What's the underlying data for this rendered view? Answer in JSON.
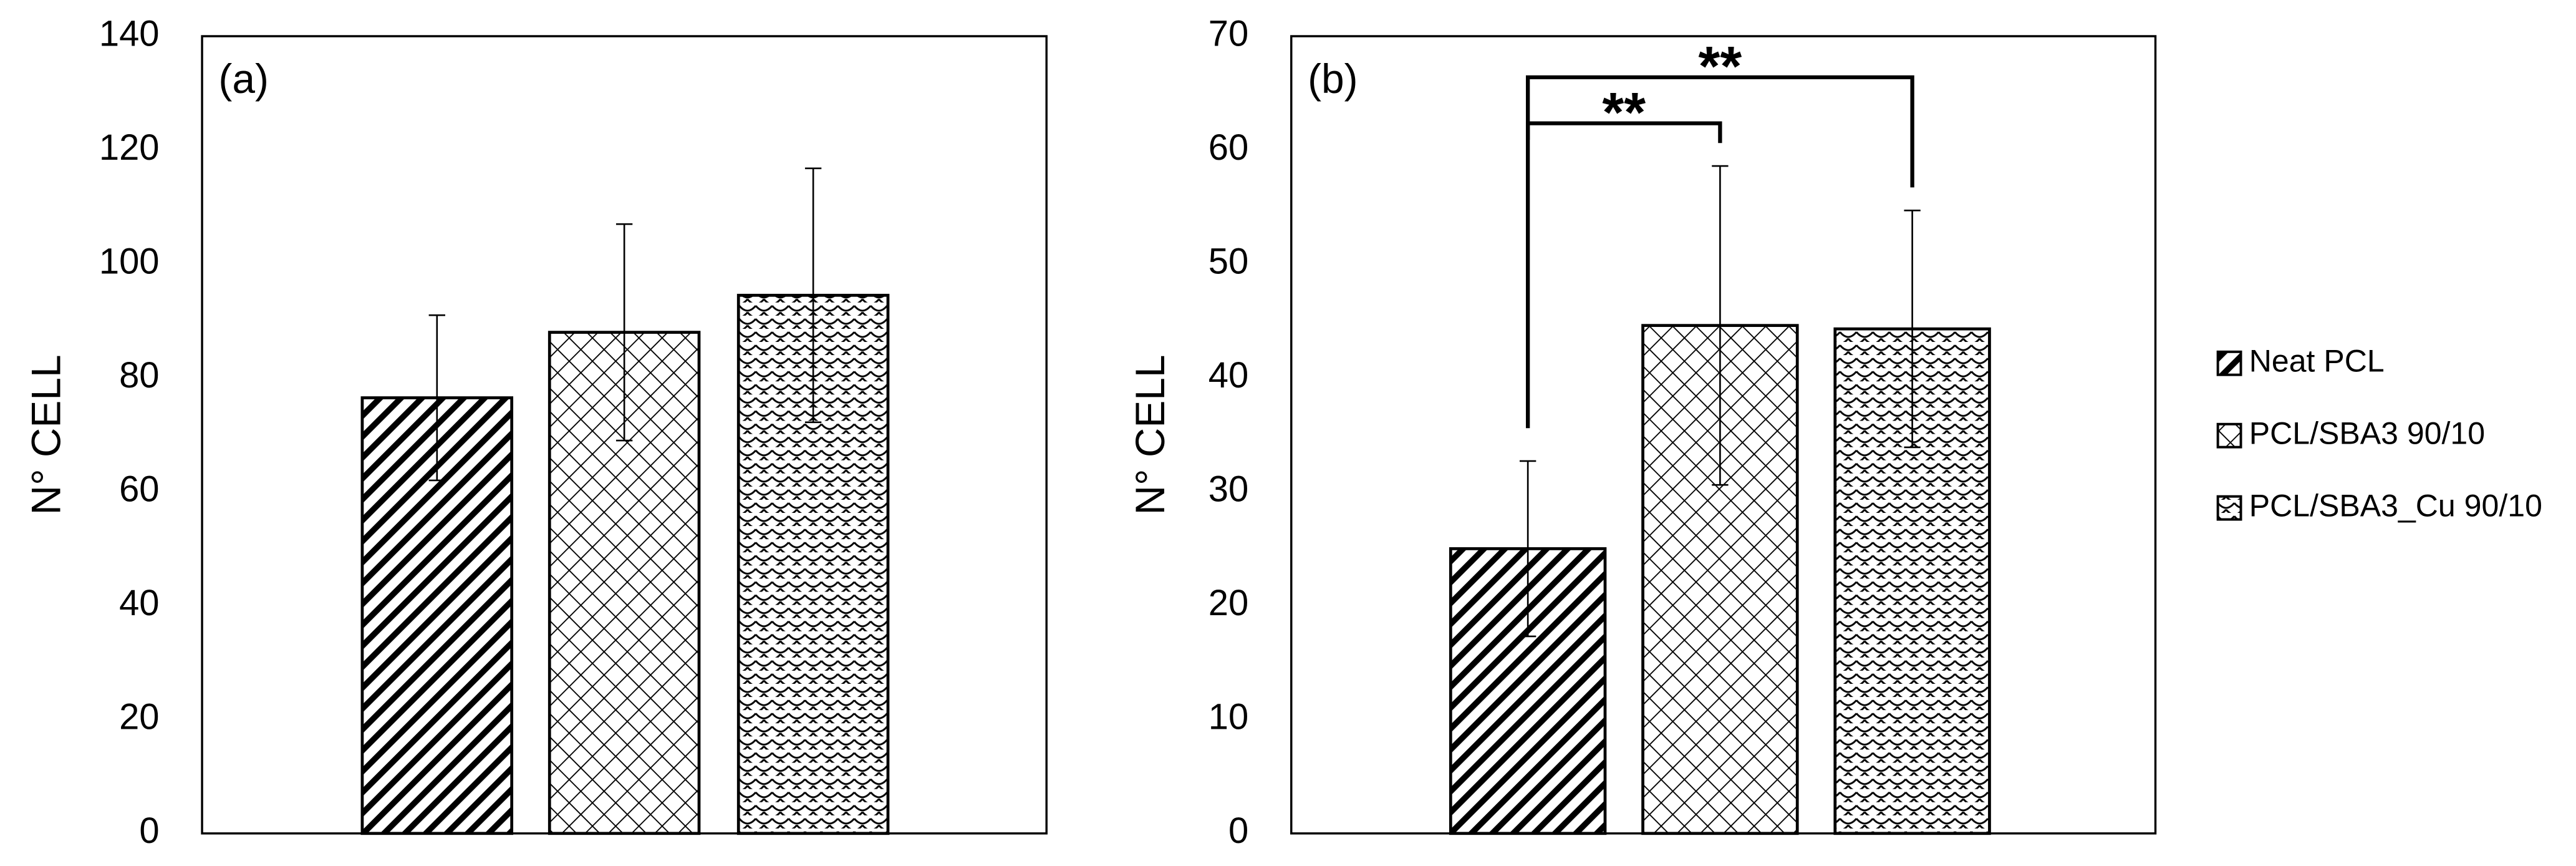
{
  "chart_data": [
    {
      "type": "bar",
      "label": "(a)",
      "ylabel": "N° CELL",
      "ylim": [
        0,
        140
      ],
      "yticks": [
        0,
        20,
        40,
        60,
        80,
        100,
        120,
        140
      ],
      "series": [
        {
          "color": "#000000",
          "pattern": "diagonal",
          "values": [
            76.5
          ],
          "errors": [
            14.5
          ]
        },
        {
          "color": "#000000",
          "pattern": "crosshatch",
          "values": [
            88
          ],
          "errors": [
            19
          ]
        },
        {
          "color": "#000000",
          "pattern": "scales",
          "values": [
            94.5
          ],
          "errors": [
            22.3
          ]
        }
      ]
    },
    {
      "type": "bar",
      "label": "(b)",
      "ylabel": "N° CELL",
      "ylim": [
        0,
        70
      ],
      "yticks": [
        0,
        10,
        20,
        30,
        40,
        50,
        60,
        70
      ],
      "series": [
        {
          "name": "Neat PCL",
          "color": "#000000",
          "pattern": "diagonal",
          "values": [
            25
          ],
          "errors": [
            7.7
          ]
        },
        {
          "name": "PCL/SBA3 90/10",
          "color": "#000000",
          "pattern": "crosshatch",
          "values": [
            44.6
          ],
          "errors": [
            14
          ]
        },
        {
          "name": "PCL/SBA3_Cu 90/10",
          "color": "#000000",
          "pattern": "scales",
          "values": [
            44.3
          ],
          "errors": [
            10.4
          ]
        }
      ],
      "annotations": [
        {
          "text": "**",
          "from": 0,
          "to": 1
        },
        {
          "text": "**",
          "from": 0,
          "to": 2
        }
      ]
    }
  ]
}
